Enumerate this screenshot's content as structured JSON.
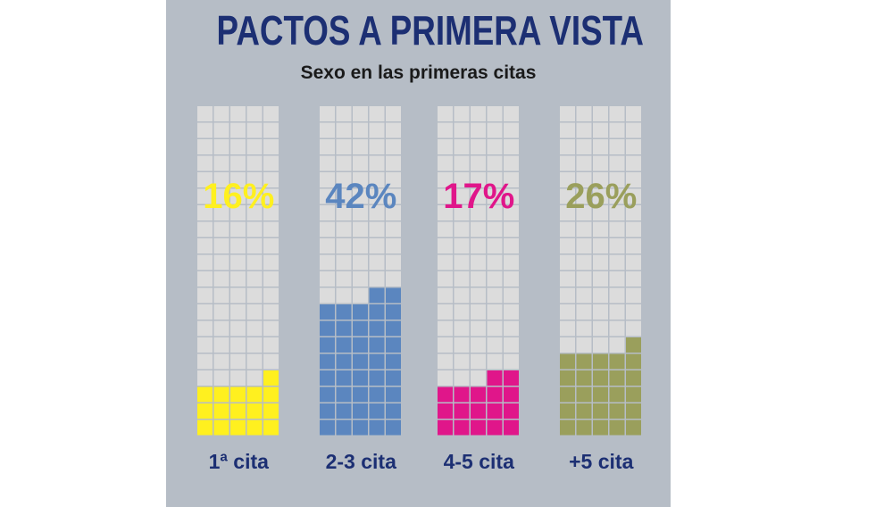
{
  "header": {
    "title": "PACTOS A PRIMERA VISTA",
    "subtitle": "Sexo en las primeras citas"
  },
  "colors": {
    "empty_cell": "#dcdcdc",
    "title": "#1c2f73",
    "background": "#b6bdc6"
  },
  "chart_data": {
    "type": "bar",
    "subtype": "waffle-column",
    "title": "PACTOS A PRIMERA VISTA",
    "subtitle": "Sexo en las primeras citas",
    "categories": [
      "1ª cita",
      "2-3 cita",
      "4-5 cita",
      "+5 cita"
    ],
    "values": [
      16,
      42,
      17,
      26
    ],
    "labels": [
      "16%",
      "42%",
      "17%",
      "26%"
    ],
    "unit": "%",
    "colors": [
      "#fff01f",
      "#5b86bf",
      "#e0168a",
      "#9a9f5c"
    ],
    "grid_columns": 5,
    "grid_rows": 20
  }
}
